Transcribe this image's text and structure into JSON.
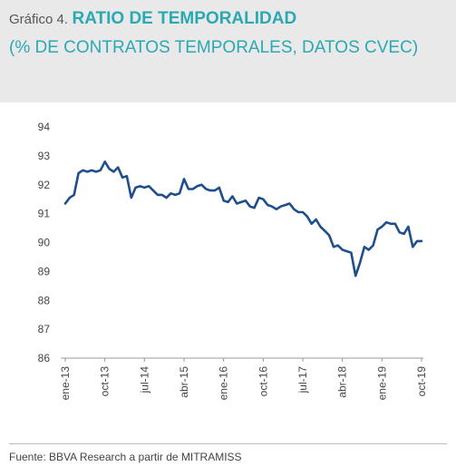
{
  "header": {
    "prefix": "Gráfico 4.",
    "title": "RATIO DE TEMPORALIDAD",
    "subtitle": "(% DE CONTRATOS TEMPORALES, DATOS CVEC)"
  },
  "footer": {
    "source": "Fuente: BBVA Research a partir de MITRAMISS"
  },
  "colors": {
    "accent": "#2aa9b3",
    "line": "#1f4e8c",
    "header_bg": "#e9e9e9"
  },
  "chart_data": {
    "type": "line",
    "title": "RATIO DE TEMPORALIDAD",
    "subtitle": "(% DE CONTRATOS TEMPORALES, DATOS CVEC)",
    "xlabel": "",
    "ylabel": "",
    "ylim": [
      86,
      94
    ],
    "y_ticks": [
      86,
      87,
      88,
      89,
      90,
      91,
      92,
      93,
      94
    ],
    "grid": false,
    "legend": "none",
    "x_tick_labels": [
      "ene-13",
      "oct-13",
      "jul-14",
      "abr-15",
      "ene-16",
      "oct-16",
      "jul-17",
      "abr-18",
      "ene-19",
      "oct-19"
    ],
    "series": [
      {
        "x": [
          "2013-01",
          "2013-02",
          "2013-03",
          "2013-04",
          "2013-05",
          "2013-06",
          "2013-07",
          "2013-08",
          "2013-09",
          "2013-10",
          "2013-11",
          "2013-12",
          "2014-01",
          "2014-02",
          "2014-03",
          "2014-04",
          "2014-05",
          "2014-06",
          "2014-07",
          "2014-08",
          "2014-09",
          "2014-10",
          "2014-11",
          "2014-12",
          "2015-01",
          "2015-02",
          "2015-03",
          "2015-04",
          "2015-05",
          "2015-06",
          "2015-07",
          "2015-08",
          "2015-09",
          "2015-10",
          "2015-11",
          "2015-12",
          "2016-01",
          "2016-02",
          "2016-03",
          "2016-04",
          "2016-05",
          "2016-06",
          "2016-07",
          "2016-08",
          "2016-09",
          "2016-10",
          "2016-11",
          "2016-12",
          "2017-01",
          "2017-02",
          "2017-03",
          "2017-04",
          "2017-05",
          "2017-06",
          "2017-07",
          "2017-08",
          "2017-09",
          "2017-10",
          "2017-11",
          "2017-12",
          "2018-01",
          "2018-02",
          "2018-03",
          "2018-04",
          "2018-05",
          "2018-06",
          "2018-07",
          "2018-08",
          "2018-09",
          "2018-10",
          "2018-11",
          "2018-12",
          "2019-01",
          "2019-02",
          "2019-03",
          "2019-04",
          "2019-05",
          "2019-06",
          "2019-07",
          "2019-08",
          "2019-09",
          "2019-10"
        ],
        "values": [
          91.35,
          91.55,
          91.65,
          92.4,
          92.5,
          92.45,
          92.5,
          92.45,
          92.5,
          92.8,
          92.55,
          92.45,
          92.6,
          92.25,
          92.3,
          91.55,
          91.9,
          91.95,
          91.9,
          91.95,
          91.8,
          91.65,
          91.65,
          91.55,
          91.7,
          91.65,
          91.7,
          92.2,
          91.85,
          91.85,
          91.95,
          92.0,
          91.85,
          91.8,
          91.8,
          91.9,
          91.45,
          91.4,
          91.6,
          91.35,
          91.4,
          91.45,
          91.25,
          91.2,
          91.55,
          91.5,
          91.3,
          91.25,
          91.15,
          91.25,
          91.3,
          91.35,
          91.15,
          91.05,
          91.05,
          90.9,
          90.65,
          90.8,
          90.55,
          90.4,
          90.25,
          89.85,
          89.9,
          89.75,
          89.7,
          89.65,
          88.85,
          89.3,
          89.85,
          89.75,
          89.9,
          90.45,
          90.55,
          90.7,
          90.65,
          90.65,
          90.35,
          90.3,
          90.55,
          89.85,
          90.05,
          90.05
        ]
      }
    ]
  }
}
